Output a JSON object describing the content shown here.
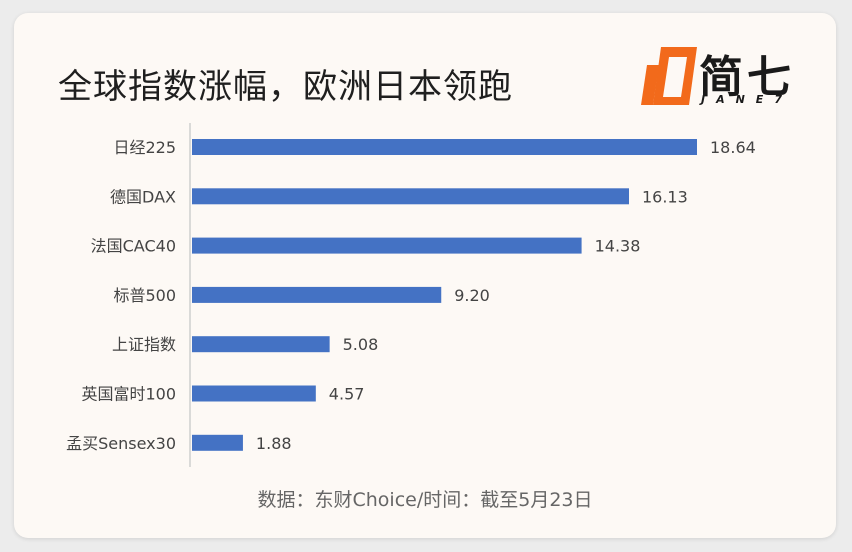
{
  "brand": {
    "name": "简七",
    "sub": "JANE7",
    "accent": "#f26a1b"
  },
  "source": "数据：东财Choice/时间：截至5月23日",
  "chart_data": {
    "type": "bar",
    "orientation": "horizontal",
    "title": "全球指数涨幅，欧洲日本领跑",
    "categories": [
      "日经225",
      "德国DAX",
      "法国CAC40",
      "标普500",
      "上证指数",
      "英国富时100",
      "孟买Sensex30"
    ],
    "values": [
      18.64,
      16.13,
      14.38,
      9.2,
      5.08,
      4.57,
      1.88
    ],
    "value_labels": [
      "18.64",
      "16.13",
      "14.38",
      "9.20",
      "5.08",
      "4.57",
      "1.88"
    ],
    "bar_color": "#4472c4",
    "xlim": [
      0,
      20
    ],
    "grid": false,
    "legend": "none"
  }
}
